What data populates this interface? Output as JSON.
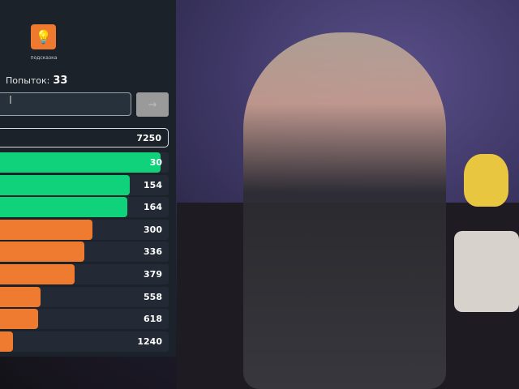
{
  "hint": {
    "icon": "lightbulb-icon",
    "label": "подсказка"
  },
  "attempts": {
    "label": "Попыток:",
    "value": "33"
  },
  "input": {
    "value": "",
    "submit_icon": "arrow-right-icon"
  },
  "current_guess": {
    "rank": "7250"
  },
  "colors": {
    "close": "#0fd27a",
    "medium": "#ee7b30",
    "panel": "#1b222a"
  },
  "guesses": [
    {
      "rank": "30",
      "fill": 0.95,
      "color": "close"
    },
    {
      "rank": "154",
      "fill": 0.77,
      "color": "close"
    },
    {
      "rank": "164",
      "fill": 0.755,
      "color": "close"
    },
    {
      "rank": "300",
      "fill": 0.55,
      "color": "medium"
    },
    {
      "rank": "336",
      "fill": 0.5,
      "color": "medium"
    },
    {
      "rank": "379",
      "fill": 0.44,
      "color": "medium"
    },
    {
      "rank": "558",
      "fill": 0.24,
      "color": "medium"
    },
    {
      "rank": "618",
      "fill": 0.225,
      "color": "medium"
    },
    {
      "rank": "1240",
      "fill": 0.075,
      "color": "medium"
    }
  ]
}
